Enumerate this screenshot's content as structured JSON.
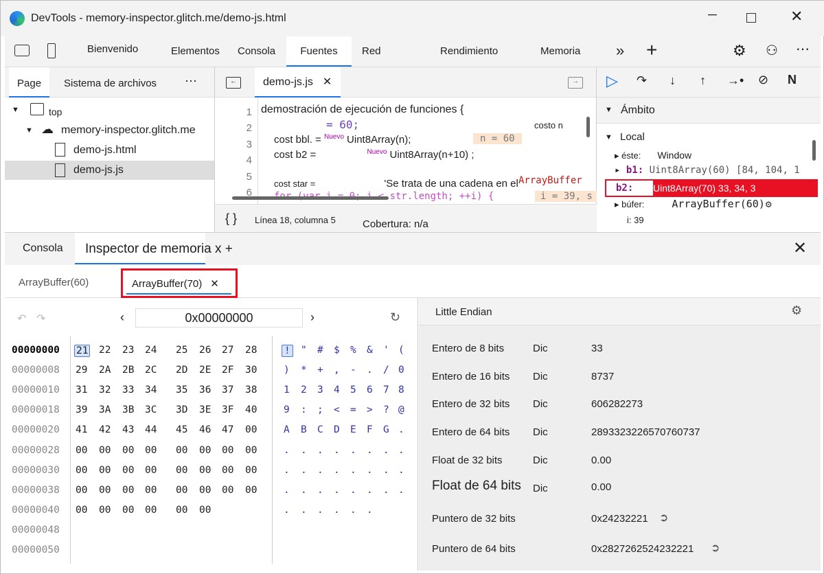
{
  "window": {
    "title": "DevTools - memory-inspector.glitch.me/demo-js.html"
  },
  "toolbar": {
    "tabs": [
      "Bienvenido",
      "Elementos",
      "Consola",
      "Fuentes",
      "Red",
      "Rendimiento",
      "Memoria"
    ],
    "active": "Fuentes"
  },
  "navigator": {
    "tabs": [
      "Page",
      "Sistema de archivos"
    ],
    "tree": {
      "top": "top",
      "domain": "memory-inspector.glitch.me",
      "files": [
        "demo-js.html",
        "demo-js.js"
      ],
      "selected": "demo-js.js"
    }
  },
  "editor": {
    "tab": "demo-js.js",
    "lines": [
      {
        "n": "1",
        "text": "demostración de ejecución de funciones {"
      },
      {
        "n": "2",
        "text": "= 60;",
        "extra": "costo n"
      },
      {
        "n": "3",
        "text": "cost bbl.     =",
        "kw": "Nuevo",
        "rest": "Uint8Array(n);",
        "inline": "n = 60"
      },
      {
        "n": "4",
        "text": "cost b2 =",
        "kw": "Nuevo",
        "rest": "Uint8Array(n+10) ;"
      },
      {
        "n": "5",
        "text": ""
      },
      {
        "n": "6",
        "text": "cost star =",
        "rest": "'Se trata de una cadena en el",
        "extra": "ArrayBuffer"
      },
      {
        "n": "7",
        "text": "for (var i = 0; i < str.length; ++i) {",
        "inline": "i = 39, s"
      }
    ],
    "status": {
      "position": "Línea 18, columna 5",
      "coverage": "Cobertura: n/a"
    }
  },
  "scope": {
    "title": "Ámbito",
    "local": "Local",
    "items": [
      {
        "name": "éste:",
        "value": "Window"
      },
      {
        "name": "b1:",
        "value": "Uint8Array(60) [84, 104, 1"
      },
      {
        "name": "b2:",
        "value": "Uint8Array(70) 33, 34, 3"
      },
      {
        "name": "búfer:",
        "value": "ArrayBuffer(60)"
      },
      {
        "name": "i: 39",
        "value": ""
      }
    ]
  },
  "drawer": {
    "tabs": [
      "Consola",
      "Inspector de memoria x +"
    ],
    "active": "Inspector de memoria x +",
    "buffers": [
      "ArrayBuffer(60)",
      "ArrayBuffer(70)"
    ],
    "active_buffer": "ArrayBuffer(70)"
  },
  "memory": {
    "address": "0x00000000",
    "rows": [
      {
        "addr": "00000000",
        "bytes": [
          "21",
          "22",
          "23",
          "24",
          "25",
          "26",
          "27",
          "28"
        ],
        "ascii": [
          "!",
          "\"",
          "#",
          "$",
          "%",
          "&",
          "'",
          "("
        ]
      },
      {
        "addr": "00000008",
        "bytes": [
          "29",
          "2A",
          "2B",
          "2C",
          "2D",
          "2E",
          "2F",
          "30"
        ],
        "ascii": [
          ")",
          "*",
          "+",
          ",",
          "-",
          ".",
          "/",
          "0"
        ]
      },
      {
        "addr": "00000010",
        "bytes": [
          "31",
          "32",
          "33",
          "34",
          "35",
          "36",
          "37",
          "38"
        ],
        "ascii": [
          "1",
          "2",
          "3",
          "4",
          "5",
          "6",
          "7",
          "8"
        ]
      },
      {
        "addr": "00000018",
        "bytes": [
          "39",
          "3A",
          "3B",
          "3C",
          "3D",
          "3E",
          "3F",
          "40"
        ],
        "ascii": [
          "9",
          ":",
          ";",
          "<",
          "=",
          ">",
          "?",
          "@"
        ]
      },
      {
        "addr": "00000020",
        "bytes": [
          "41",
          "42",
          "43",
          "44",
          "45",
          "46",
          "47",
          "00"
        ],
        "ascii": [
          "A",
          "B",
          "C",
          "D",
          "E",
          "F",
          "G",
          "."
        ]
      },
      {
        "addr": "00000028",
        "bytes": [
          "00",
          "00",
          "00",
          "00",
          "00",
          "00",
          "00",
          "00"
        ],
        "ascii": [
          ".",
          ".",
          ".",
          ".",
          ".",
          ".",
          ".",
          "."
        ]
      },
      {
        "addr": "00000030",
        "bytes": [
          "00",
          "00",
          "00",
          "00",
          "00",
          "00",
          "00",
          "00"
        ],
        "ascii": [
          ".",
          ".",
          ".",
          ".",
          ".",
          ".",
          ".",
          "."
        ]
      },
      {
        "addr": "00000038",
        "bytes": [
          "00",
          "00",
          "00",
          "00",
          "00",
          "00",
          "00",
          "00"
        ],
        "ascii": [
          ".",
          ".",
          ".",
          ".",
          ".",
          ".",
          ".",
          "."
        ]
      },
      {
        "addr": "00000040",
        "bytes": [
          "00",
          "00",
          "00",
          "00",
          "00",
          "00"
        ],
        "ascii": [
          ".",
          ".",
          ".",
          ".",
          ".",
          "."
        ]
      },
      {
        "addr": "00000048",
        "bytes": [],
        "ascii": []
      },
      {
        "addr": "00000050",
        "bytes": [],
        "ascii": []
      }
    ]
  },
  "values": {
    "endianness": "Little Endian",
    "rows": [
      {
        "label": "Entero de 8 bits",
        "mode": "Dic",
        "value": "33"
      },
      {
        "label": "Entero de 16 bits",
        "mode": "Dic",
        "value": "8737"
      },
      {
        "label": "Entero de 32 bits",
        "mode": "Dic",
        "value": "606282273"
      },
      {
        "label": "Entero de 64 bits",
        "mode": "Dic",
        "value": "2893323226570760737"
      },
      {
        "label": "Float de 32 bits",
        "mode": "Dic",
        "value": "0.00"
      },
      {
        "label": "Float de 64 bits",
        "mode": "Dic",
        "value": "0.00"
      },
      {
        "label": "Puntero de 32 bits",
        "mode": "",
        "value": "0x24232221"
      },
      {
        "label": "Puntero de 64 bits",
        "mode": "",
        "value": "0x2827262524232221"
      }
    ]
  },
  "colors": {
    "accent": "#1a73e8",
    "highlight": "#e81123"
  }
}
